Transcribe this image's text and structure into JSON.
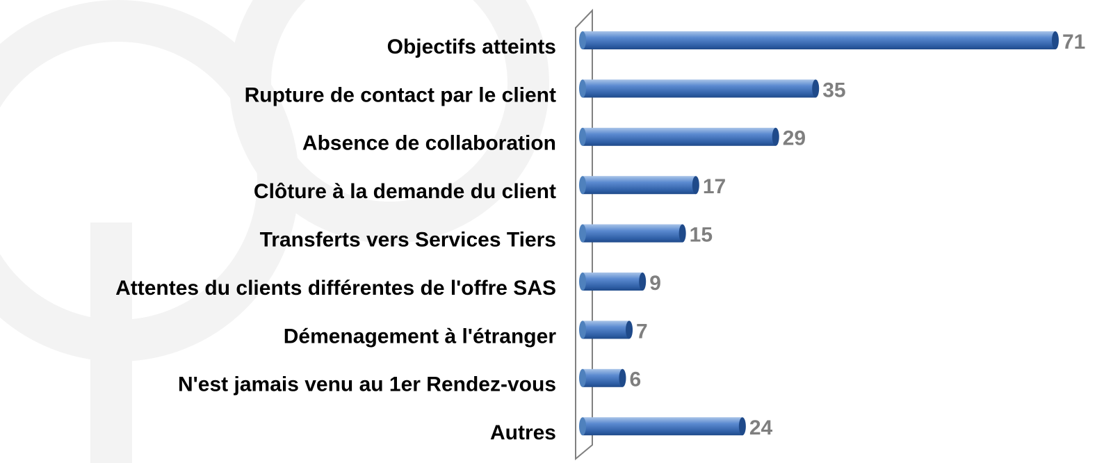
{
  "chart_data": {
    "type": "bar",
    "orientation": "horizontal",
    "categories": [
      "Objectifs atteints",
      "Rupture de contact par le client",
      "Absence de collaboration",
      "Clôture à la demande du client",
      "Transferts vers Services Tiers",
      "Attentes du clients différentes de l'offre SAS",
      "Démenagement à l'étranger",
      "N'est jamais venu au 1er Rendez-vous",
      "Autres"
    ],
    "values": [
      71,
      35,
      29,
      17,
      15,
      9,
      7,
      6,
      24
    ],
    "color": "#4f81bd"
  }
}
